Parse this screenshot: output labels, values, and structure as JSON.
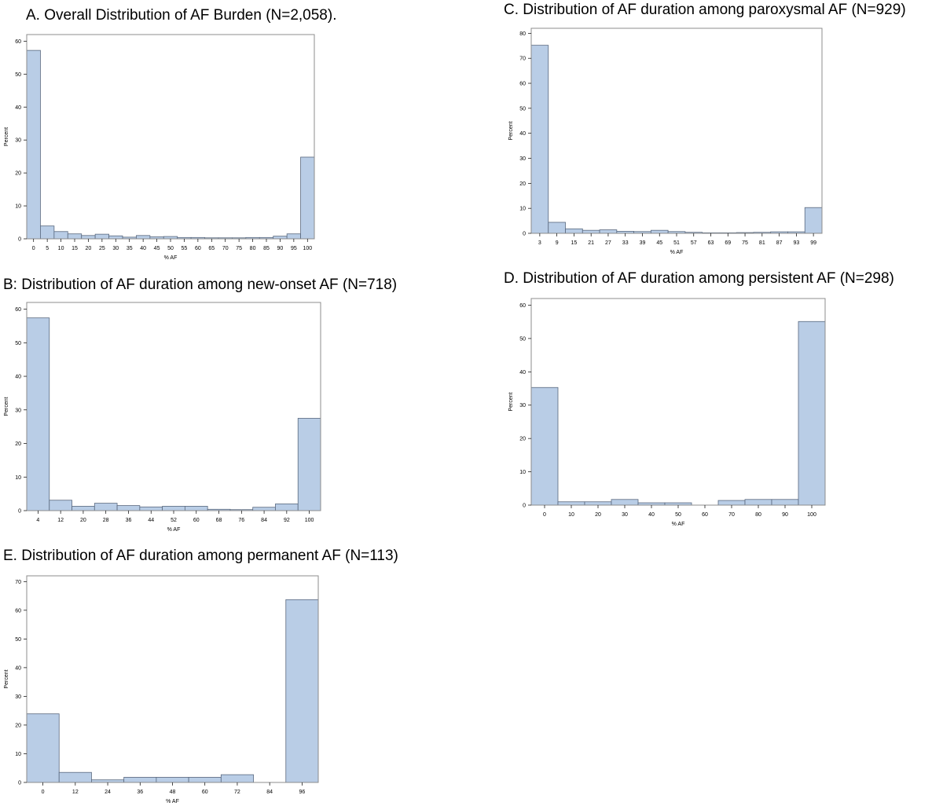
{
  "chart_data": [
    {
      "id": "A",
      "type": "bar",
      "title": "A.  Overall Distribution of AF Burden (N=2,058).",
      "xlabel": "% AF",
      "ylabel": "Percent",
      "categories": [
        "0",
        "5",
        "10",
        "15",
        "20",
        "25",
        "30",
        "35",
        "40",
        "45",
        "50",
        "55",
        "60",
        "65",
        "70",
        "75",
        "80",
        "85",
        "90",
        "95",
        "100"
      ],
      "values": [
        57.2,
        3.9,
        2.2,
        1.5,
        1.0,
        1.4,
        0.9,
        0.5,
        1.0,
        0.6,
        0.7,
        0.4,
        0.4,
        0.3,
        0.3,
        0.3,
        0.4,
        0.4,
        0.8,
        1.5,
        24.8
      ],
      "yticks": [
        0,
        10,
        20,
        30,
        40,
        50,
        60
      ],
      "ylim": [
        0,
        62
      ],
      "grid": false,
      "legend": "none"
    },
    {
      "id": "B",
      "type": "bar",
      "title": "B: Distribution of AF duration among new-onset AF (N=718)",
      "xlabel": "% AF",
      "ylabel": "Percent",
      "categories": [
        "4",
        "12",
        "20",
        "28",
        "36",
        "44",
        "52",
        "60",
        "68",
        "76",
        "84",
        "92",
        "100"
      ],
      "values": [
        57.4,
        3.1,
        1.3,
        2.2,
        1.5,
        1.1,
        1.3,
        1.3,
        0.4,
        0.3,
        1.0,
        2.0,
        27.5
      ],
      "yticks": [
        0,
        10,
        20,
        30,
        40,
        50,
        60
      ],
      "ylim": [
        0,
        62
      ],
      "grid": false,
      "legend": "none"
    },
    {
      "id": "C",
      "type": "bar",
      "title": "C. Distribution of AF duration among paroxysmal AF (N=929)",
      "xlabel": "% AF",
      "ylabel": "Percent",
      "categories": [
        "3",
        "9",
        "15",
        "21",
        "27",
        "33",
        "39",
        "45",
        "51",
        "57",
        "63",
        "69",
        "75",
        "81",
        "87",
        "93",
        "99"
      ],
      "values": [
        75.2,
        4.4,
        1.8,
        1.2,
        1.4,
        0.8,
        0.7,
        1.2,
        0.7,
        0.4,
        0.2,
        0.2,
        0.3,
        0.4,
        0.6,
        0.6,
        10.3
      ],
      "yticks": [
        0,
        10,
        20,
        30,
        40,
        50,
        60,
        70,
        80
      ],
      "ylim": [
        0,
        82
      ],
      "grid": false,
      "legend": "none"
    },
    {
      "id": "D",
      "type": "bar",
      "title": "D. Distribution of AF duration among persistent AF (N=298)",
      "xlabel": "% AF",
      "ylabel": "Percent",
      "categories": [
        "0",
        "10",
        "20",
        "30",
        "40",
        "50",
        "60",
        "70",
        "80",
        "90",
        "100"
      ],
      "values": [
        35.3,
        1.0,
        1.0,
        1.7,
        0.7,
        0.7,
        0,
        1.4,
        1.7,
        1.7,
        55.1
      ],
      "yticks": [
        0,
        10,
        20,
        30,
        40,
        50,
        60
      ],
      "ylim": [
        0,
        62
      ],
      "grid": false,
      "legend": "none"
    },
    {
      "id": "E",
      "type": "bar",
      "title": "E. Distribution of AF duration among permanent AF (N=113)",
      "xlabel": "% AF",
      "ylabel": "Percent",
      "categories": [
        "0",
        "12",
        "24",
        "36",
        "48",
        "60",
        "72",
        "84",
        "96"
      ],
      "values": [
        23.9,
        3.5,
        0.9,
        1.8,
        1.8,
        1.8,
        2.7,
        0,
        63.7
      ],
      "yticks": [
        0,
        10,
        20,
        30,
        40,
        50,
        60,
        70
      ],
      "ylim": [
        0,
        72
      ],
      "grid": false,
      "legend": "none"
    }
  ],
  "style": {
    "bar_fill": "#b9cde6",
    "bar_stroke": "#59687e",
    "frame_stroke": "#8c8c8c",
    "text_color": "#000000"
  }
}
